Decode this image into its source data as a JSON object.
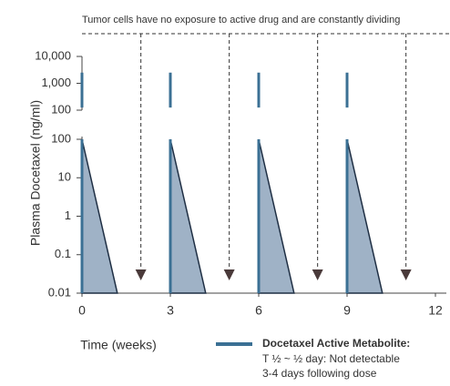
{
  "chart_data": {
    "type": "line",
    "annotation": "Tumor cells have no exposure to active drug and are constantly dividing",
    "arrows_x": [
      2,
      5,
      8,
      11
    ],
    "x_label": "Time (weeks)",
    "y_label": "Plasma Docetaxel (ng/ml)",
    "log_scale": true,
    "xlim": [
      0,
      12
    ],
    "xticks": [
      0,
      3,
      6,
      9,
      12
    ],
    "ylim": [
      0.01,
      100
    ],
    "yticks": [
      0.01,
      0.1,
      1,
      10,
      100
    ],
    "ylim_upper": [
      100,
      10000
    ],
    "yticks_upper": [
      100,
      {
        "value": 1000,
        "label": "1,000"
      },
      {
        "value": 10000,
        "label": "10,000"
      }
    ],
    "dose_bars": {
      "color": "#3b7094",
      "x": [
        0,
        3,
        6,
        9
      ],
      "low": [
        125,
        125,
        125,
        125
      ],
      "high": [
        2500,
        2500,
        2500,
        2500
      ]
    },
    "series": [
      {
        "name": "Docetaxel Active Metabolite:",
        "color": "#3b7094",
        "fill": "#9fb2c6",
        "x": [
          0,
          1.2,
          3,
          4.2,
          6,
          7.2,
          9,
          10.2
        ],
        "values": [
          100,
          0.01,
          100,
          0.01,
          100,
          0.01,
          100,
          0.01
        ]
      }
    ],
    "legend_notes": [
      "T ½ ~ ½ day: Not detectable",
      "3-4 days following dose"
    ]
  }
}
